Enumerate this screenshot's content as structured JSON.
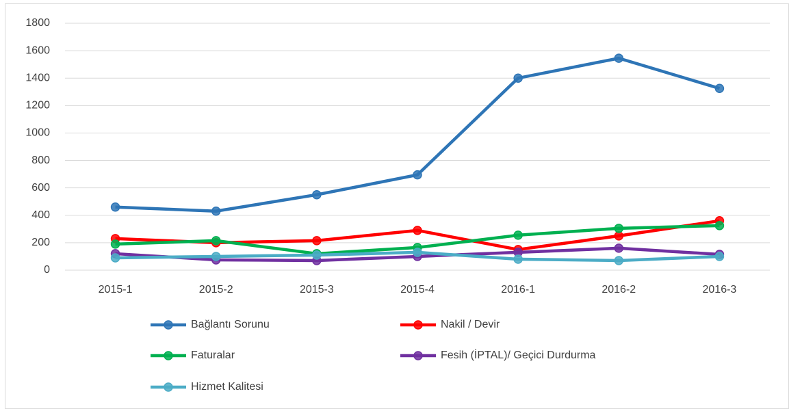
{
  "chart_data": {
    "type": "line",
    "categories": [
      "2015-1",
      "2015-2",
      "2015-3",
      "2015-4",
      "2016-1",
      "2016-2",
      "2016-3"
    ],
    "series": [
      {
        "name": "Bağlantı Sorunu",
        "color": "#2e75b6",
        "values": [
          460,
          430,
          550,
          695,
          1400,
          1545,
          1325
        ]
      },
      {
        "name": "Nakil / Devir",
        "color": "#ff0000",
        "values": [
          230,
          200,
          215,
          290,
          150,
          250,
          360
        ]
      },
      {
        "name": "Faturalar",
        "color": "#00b050",
        "values": [
          190,
          215,
          120,
          165,
          255,
          305,
          325
        ]
      },
      {
        "name": "Fesih (İPTAL)/ Geçici Durdurma",
        "color": "#7030a0",
        "values": [
          120,
          75,
          70,
          100,
          130,
          160,
          115
        ]
      },
      {
        "name": "Hizmet Kalitesi",
        "color": "#4bacc6",
        "values": [
          90,
          100,
          110,
          130,
          80,
          70,
          100
        ]
      }
    ],
    "ylim": [
      0,
      1800
    ],
    "yticks": [
      0,
      200,
      400,
      600,
      800,
      1000,
      1200,
      1400,
      1600,
      1800
    ],
    "grid": true,
    "legend": "bottom"
  }
}
